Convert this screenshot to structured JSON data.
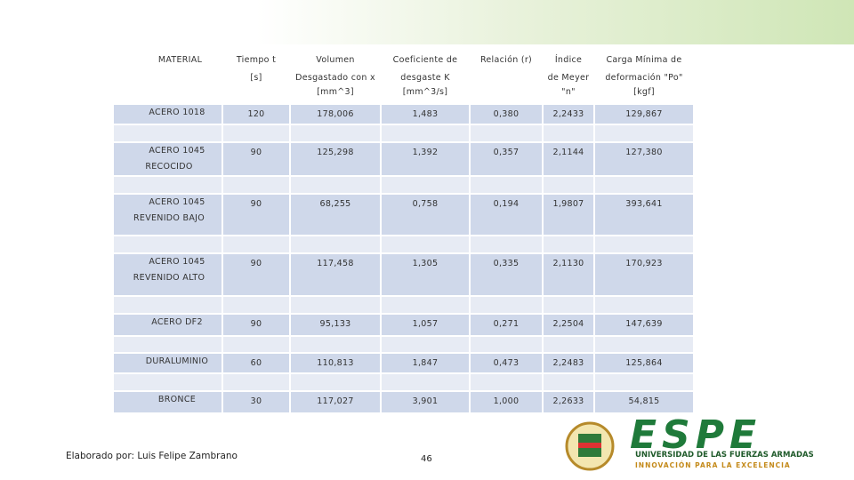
{
  "table": {
    "header": [
      [
        "MATERIAL"
      ],
      [
        "Tiempo t",
        "[s]"
      ],
      [
        "Volumen",
        "Desgastado con x",
        "[mm^3]"
      ],
      [
        "Coeficiente de",
        "desgaste K",
        "[mm^3/s]"
      ],
      [
        "Relación (r)"
      ],
      [
        "Índice",
        "de Meyer",
        "\"n\""
      ],
      [
        "Carga Mínima de",
        "deformación \"Po\"",
        "[kgf]"
      ]
    ],
    "rows": [
      [
        [
          "ACERO 1018"
        ],
        "120",
        "178,006",
        "1,483",
        "0,380",
        "2,2433",
        "129,867"
      ],
      [
        [
          "ACERO 1045",
          "RECOCIDO"
        ],
        "90",
        "125,298",
        "1,392",
        "0,357",
        "2,1144",
        "127,380"
      ],
      [
        [
          "ACERO 1045",
          "REVENIDO BAJO"
        ],
        "90",
        "68,255",
        "0,758",
        "0,194",
        "1,9807",
        "393,641"
      ],
      [
        [
          "ACERO 1045",
          "REVENIDO ALTO"
        ],
        "90",
        "117,458",
        "1,305",
        "0,335",
        "2,1130",
        "170,923"
      ],
      [
        [
          "ACERO DF2"
        ],
        "90",
        "95,133",
        "1,057",
        "0,271",
        "2,2504",
        "147,639"
      ],
      [
        [
          "DURALUMINIO"
        ],
        "60",
        "110,813",
        "1,847",
        "0,473",
        "2,2483",
        "125,864"
      ],
      [
        [
          "BRONCE"
        ],
        "30",
        "117,027",
        "3,901",
        "1,000",
        "2,2633",
        "54,815"
      ]
    ]
  },
  "footer": {
    "author": "Elaborado por: Luis Felipe Zambrano",
    "page": "46"
  },
  "logo": {
    "name": "ESPE",
    "university": "UNIVERSIDAD DE LAS FUERZAS ARMADAS",
    "motto": "INNOVACIÓN PARA LA EXCELENCIA"
  }
}
